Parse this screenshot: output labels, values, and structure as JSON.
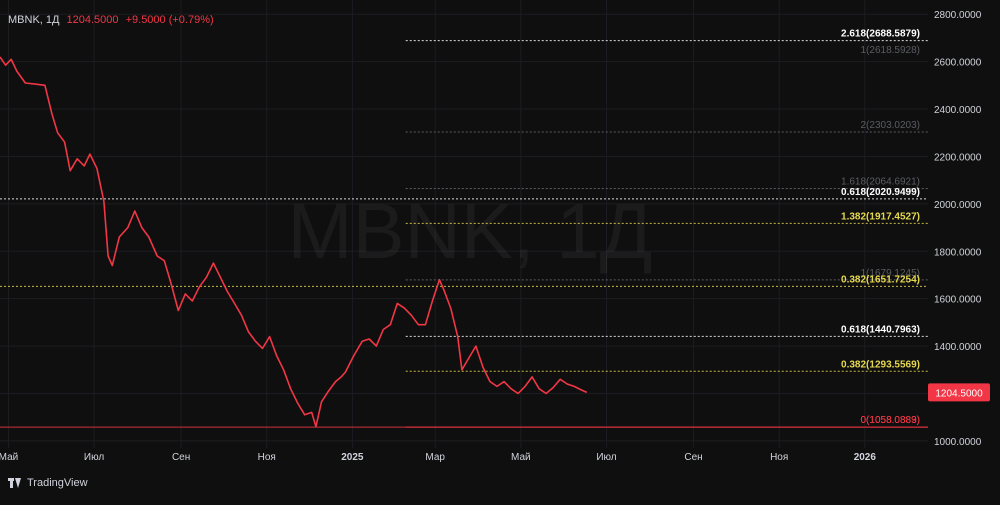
{
  "header": {
    "symbol": "MBNK, 1Д",
    "price": "1204.5000",
    "change": "+9.5000 (+0.79%)"
  },
  "watermark": "MBNK, 1Д",
  "branding": {
    "logo_text": "TradingView",
    "icon": "tradingview-logo-icon"
  },
  "colors": {
    "background": "#0f0f0f",
    "line": "#f23645",
    "grid": "#1c1d22",
    "axis_text": "#d1d4dc",
    "fib_gray": "#8c8f99",
    "fib_yellow": "#e6d84e",
    "fib_white": "#ffffff",
    "price_tag": "#f23645"
  },
  "chart_data": {
    "type": "line",
    "ylim": [
      970,
      2860
    ],
    "y_ticks": [
      1000,
      1200,
      1400,
      1600,
      1800,
      2000,
      2200,
      2400,
      2600,
      2800
    ],
    "y_tick_labels": [
      "1000.0000",
      "1200.0000",
      "1400.0000",
      "1600.0000",
      "1800.0000",
      "2000.0000",
      "2200.0000",
      "2400.0000",
      "2600.0000",
      "2800.0000"
    ],
    "x_range": [
      "2024-04-25",
      "2026-02-15"
    ],
    "x_ticks": [
      {
        "date": "2024-05-01",
        "label": "Май",
        "bold": false
      },
      {
        "date": "2024-07-01",
        "label": "Июл",
        "bold": false
      },
      {
        "date": "2024-09-01",
        "label": "Сен",
        "bold": false
      },
      {
        "date": "2024-11-01",
        "label": "Ноя",
        "bold": false
      },
      {
        "date": "2025-01-01",
        "label": "2025",
        "bold": true
      },
      {
        "date": "2025-03-01",
        "label": "Мар",
        "bold": false
      },
      {
        "date": "2025-05-01",
        "label": "Май",
        "bold": false
      },
      {
        "date": "2025-07-01",
        "label": "Июл",
        "bold": false
      },
      {
        "date": "2025-09-01",
        "label": "Сен",
        "bold": false
      },
      {
        "date": "2025-11-01",
        "label": "Ноя",
        "bold": false
      },
      {
        "date": "2026-01-01",
        "label": "2026",
        "bold": true
      }
    ],
    "series": [
      {
        "points": [
          [
            "2024-04-25",
            2620
          ],
          [
            "2024-04-29",
            2585
          ],
          [
            "2024-05-03",
            2610
          ],
          [
            "2024-05-07",
            2560
          ],
          [
            "2024-05-13",
            2510
          ],
          [
            "2024-05-20",
            2505
          ],
          [
            "2024-05-27",
            2500
          ],
          [
            "2024-06-01",
            2380
          ],
          [
            "2024-06-05",
            2300
          ],
          [
            "2024-06-10",
            2260
          ],
          [
            "2024-06-14",
            2140
          ],
          [
            "2024-06-19",
            2190
          ],
          [
            "2024-06-24",
            2160
          ],
          [
            "2024-06-28",
            2210
          ],
          [
            "2024-07-03",
            2150
          ],
          [
            "2024-07-08",
            2010
          ],
          [
            "2024-07-11",
            1780
          ],
          [
            "2024-07-14",
            1740
          ],
          [
            "2024-07-19",
            1860
          ],
          [
            "2024-07-25",
            1900
          ],
          [
            "2024-07-30",
            1970
          ],
          [
            "2024-08-04",
            1900
          ],
          [
            "2024-08-09",
            1860
          ],
          [
            "2024-08-15",
            1780
          ],
          [
            "2024-08-20",
            1760
          ],
          [
            "2024-08-25",
            1660
          ],
          [
            "2024-08-30",
            1550
          ],
          [
            "2024-09-04",
            1620
          ],
          [
            "2024-09-09",
            1590
          ],
          [
            "2024-09-14",
            1650
          ],
          [
            "2024-09-19",
            1690
          ],
          [
            "2024-09-24",
            1750
          ],
          [
            "2024-09-29",
            1690
          ],
          [
            "2024-10-04",
            1630
          ],
          [
            "2024-10-09",
            1580
          ],
          [
            "2024-10-14",
            1530
          ],
          [
            "2024-10-19",
            1460
          ],
          [
            "2024-10-24",
            1420
          ],
          [
            "2024-10-29",
            1390
          ],
          [
            "2024-11-03",
            1440
          ],
          [
            "2024-11-08",
            1360
          ],
          [
            "2024-11-13",
            1300
          ],
          [
            "2024-11-18",
            1220
          ],
          [
            "2024-11-23",
            1160
          ],
          [
            "2024-11-28",
            1110
          ],
          [
            "2024-12-03",
            1120
          ],
          [
            "2024-12-06",
            1060
          ],
          [
            "2024-12-10",
            1165
          ],
          [
            "2024-12-15",
            1210
          ],
          [
            "2024-12-20",
            1250
          ],
          [
            "2024-12-24",
            1270
          ],
          [
            "2024-12-27",
            1290
          ],
          [
            "2025-01-02",
            1360
          ],
          [
            "2025-01-08",
            1420
          ],
          [
            "2025-01-13",
            1430
          ],
          [
            "2025-01-18",
            1400
          ],
          [
            "2025-01-23",
            1470
          ],
          [
            "2025-01-28",
            1490
          ],
          [
            "2025-02-02",
            1580
          ],
          [
            "2025-02-07",
            1560
          ],
          [
            "2025-02-12",
            1530
          ],
          [
            "2025-02-17",
            1490
          ],
          [
            "2025-02-22",
            1490
          ],
          [
            "2025-02-27",
            1590
          ],
          [
            "2025-03-04",
            1680
          ],
          [
            "2025-03-07",
            1640
          ],
          [
            "2025-03-12",
            1560
          ],
          [
            "2025-03-17",
            1440
          ],
          [
            "2025-03-20",
            1300
          ],
          [
            "2025-03-25",
            1350
          ],
          [
            "2025-03-30",
            1400
          ],
          [
            "2025-04-04",
            1310
          ],
          [
            "2025-04-09",
            1250
          ],
          [
            "2025-04-14",
            1230
          ],
          [
            "2025-04-19",
            1250
          ],
          [
            "2025-04-24",
            1220
          ],
          [
            "2025-04-29",
            1200
          ],
          [
            "2025-05-04",
            1230
          ],
          [
            "2025-05-09",
            1270
          ],
          [
            "2025-05-14",
            1220
          ],
          [
            "2025-05-19",
            1200
          ],
          [
            "2025-05-24",
            1225
          ],
          [
            "2025-05-29",
            1260
          ],
          [
            "2025-06-03",
            1240
          ],
          [
            "2025-06-08",
            1230
          ],
          [
            "2025-06-13",
            1215
          ],
          [
            "2025-06-17",
            1204.5
          ]
        ]
      }
    ],
    "fib_levels": [
      {
        "label": "2.618(2688.5879)",
        "value": 2688.5879,
        "style": "white",
        "line_x_start": "2025-02-08"
      },
      {
        "label": "1(2618.5928)",
        "value": 2618.5928,
        "style": "gray",
        "line_x_start": null
      },
      {
        "label": "2(2303.0203)",
        "value": 2303.0203,
        "style": "gray",
        "line_x_start": "2025-02-08"
      },
      {
        "label": "1.618(2064.6921)",
        "value": 2064.6921,
        "style": "gray",
        "line_x_start": "2025-02-08"
      },
      {
        "label": "0.618(2020.9499)",
        "value": 2020.9499,
        "style": "white",
        "line_x_start": "2024-04-25"
      },
      {
        "label": "1.382(1917.4527)",
        "value": 1917.4527,
        "style": "yellow",
        "line_x_start": "2025-02-08"
      },
      {
        "label": "1(1679.1245)",
        "value": 1679.1245,
        "style": "gray",
        "line_x_start": "2025-02-08"
      },
      {
        "label": "0.382(1651.7254)",
        "value": 1651.7254,
        "style": "yellow",
        "line_x_start": "2024-04-25"
      },
      {
        "label": "0.618(1440.7963)",
        "value": 1440.7963,
        "style": "white",
        "line_x_start": "2025-02-08"
      },
      {
        "label": "0.382(1293.5569)",
        "value": 1293.5569,
        "style": "yellow",
        "line_x_start": "2025-02-08"
      },
      {
        "label": "0(1058.0889)",
        "value": 1058.0889,
        "style": "red",
        "line_x_start": "2025-02-08"
      },
      {
        "label": "0(1058.0883)",
        "value": 1058.0883,
        "style": "red",
        "line_x_start": "2024-04-25"
      }
    ],
    "last_price": {
      "value": 1204.5,
      "label": "1204.5000"
    }
  }
}
